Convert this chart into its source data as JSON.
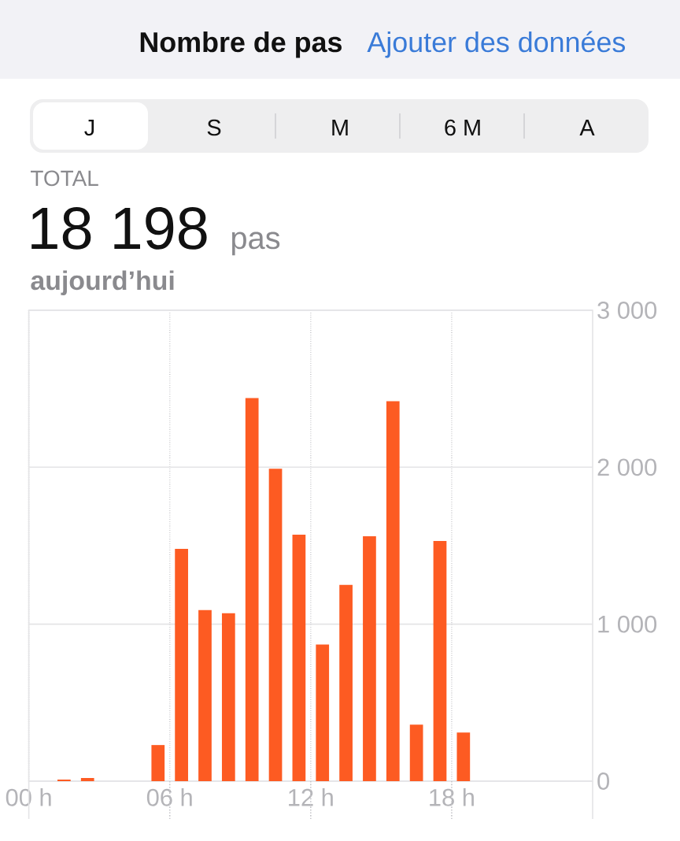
{
  "chart_data": {
    "type": "bar",
    "title": "Nombre de pas",
    "annotations": [
      "Ajouter des données",
      "J",
      "S",
      "M",
      "6 M",
      "A",
      "TOTAL",
      "18 198",
      "pas",
      "aujourd’hui"
    ],
    "x": [
      1.5,
      2.5,
      5.5,
      6.5,
      7.5,
      8.5,
      9.5,
      10.5,
      11.5,
      12.5,
      13.5,
      14.5,
      15.5,
      16.5,
      17.5,
      18.5
    ],
    "values": [
      10,
      20,
      230,
      1480,
      1090,
      1070,
      2440,
      1990,
      1570,
      870,
      1250,
      1560,
      2420,
      360,
      1530,
      310
    ],
    "color": "#fd5b22",
    "xlim": [
      0,
      24
    ],
    "xticks": [
      {
        "value": 0,
        "label": "00 h"
      },
      {
        "value": 6,
        "label": "06 h"
      },
      {
        "value": 12,
        "label": "12 h"
      },
      {
        "value": 18,
        "label": "18 h"
      }
    ],
    "ylim": [
      0,
      3000
    ],
    "yticks": [
      0,
      {
        "value": 1000,
        "label": "1 000"
      },
      {
        "value": 2000,
        "label": "2 000"
      },
      {
        "value": 3000,
        "label": "3 000"
      }
    ],
    "grid": true
  }
}
